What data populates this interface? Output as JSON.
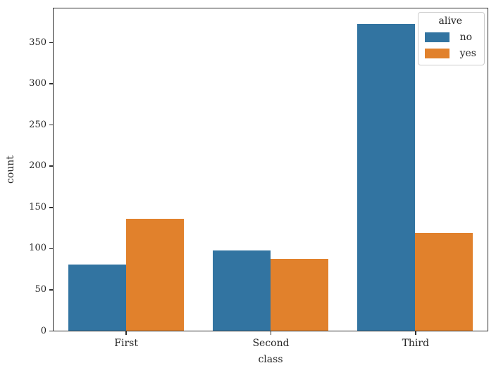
{
  "chart_data": {
    "type": "bar",
    "xlabel": "class",
    "ylabel": "count",
    "categories": [
      "First",
      "Second",
      "Third"
    ],
    "series": [
      {
        "name": "no",
        "color": "#3274a1",
        "values": [
          80,
          97,
          372
        ]
      },
      {
        "name": "yes",
        "color": "#e1812c",
        "values": [
          136,
          87,
          119
        ]
      }
    ],
    "legend": {
      "title": "alive",
      "position": "upper-right",
      "entries": [
        "no",
        "yes"
      ]
    },
    "ylim": [
      0,
      391
    ],
    "yticks": [
      0,
      50,
      100,
      150,
      200,
      250,
      300,
      350
    ],
    "grid": false,
    "group_width_fraction": 0.8,
    "colors": {
      "axis": "#2e2e2e",
      "text": "#262626",
      "legend_border": "#cccccc",
      "background": "#ffffff"
    }
  }
}
